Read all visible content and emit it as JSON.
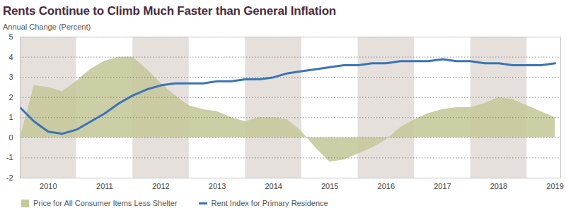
{
  "chart_data": {
    "type": "line",
    "title": "Rents Continue to Climb Much Faster than General Inflation",
    "subtitle": "Annual Change (Percent)",
    "x": [
      2010,
      2010.25,
      2010.5,
      2010.75,
      2011,
      2011.25,
      2011.5,
      2011.75,
      2012,
      2012.25,
      2012.5,
      2012.75,
      2013,
      2013.25,
      2013.5,
      2013.75,
      2014,
      2014.25,
      2014.5,
      2014.75,
      2015,
      2015.25,
      2015.5,
      2015.75,
      2016,
      2016.25,
      2016.5,
      2016.75,
      2017,
      2017.25,
      2017.5,
      2017.75,
      2018,
      2018.25,
      2018.5,
      2018.75,
      2019,
      2019.25,
      2019.5
    ],
    "series": [
      {
        "name": "Price for All Consumer Items Less Shelter",
        "type": "area",
        "color": "#c6c99c",
        "values": [
          0.0,
          2.6,
          2.5,
          2.3,
          2.8,
          3.4,
          3.8,
          4.0,
          4.0,
          3.4,
          2.7,
          2.1,
          1.6,
          1.4,
          1.3,
          1.0,
          0.8,
          1.0,
          1.0,
          0.9,
          0.3,
          -0.5,
          -1.2,
          -1.1,
          -0.8,
          -0.5,
          -0.1,
          0.5,
          0.9,
          1.2,
          1.4,
          1.5,
          1.5,
          1.7,
          2.0,
          1.9,
          1.6,
          1.3,
          1.0
        ]
      },
      {
        "name": "Rent Index for Primary Residence",
        "type": "line",
        "color": "#3a74b6",
        "values": [
          1.5,
          0.8,
          0.3,
          0.2,
          0.4,
          0.8,
          1.2,
          1.7,
          2.1,
          2.4,
          2.6,
          2.7,
          2.7,
          2.7,
          2.8,
          2.8,
          2.9,
          2.9,
          3.0,
          3.2,
          3.3,
          3.4,
          3.5,
          3.6,
          3.6,
          3.7,
          3.7,
          3.8,
          3.8,
          3.8,
          3.9,
          3.8,
          3.8,
          3.7,
          3.7,
          3.6,
          3.6,
          3.6,
          3.7
        ]
      }
    ],
    "xlim": [
      2010,
      2019.6
    ],
    "xticks": [
      {
        "value": 2010.5,
        "label": "2010"
      },
      {
        "value": 2011.5,
        "label": "2011"
      },
      {
        "value": 2012.5,
        "label": "2012"
      },
      {
        "value": 2013.5,
        "label": "2013"
      },
      {
        "value": 2014.5,
        "label": "2014"
      },
      {
        "value": 2015.5,
        "label": "2015"
      },
      {
        "value": 2016.5,
        "label": "2016"
      },
      {
        "value": 2017.5,
        "label": "2017"
      },
      {
        "value": 2018.5,
        "label": "2018"
      },
      {
        "value": 2019.5,
        "label": "2019"
      }
    ],
    "ylim": [
      -2,
      5
    ],
    "yticks": [
      -2,
      -1,
      0,
      1,
      2,
      3,
      4,
      5
    ],
    "grid": true,
    "legend": "bottom"
  }
}
